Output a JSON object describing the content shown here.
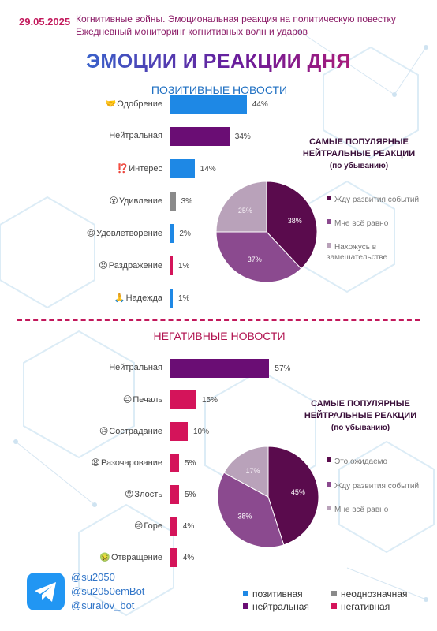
{
  "header": {
    "date": "29.05.2025",
    "subtitle_line1": "Когнитивные войны. Эмоциональная реакция на политическую повестку",
    "subtitle_line2": "Ежедневный мониторинг когнитивных волн и ударов",
    "title": "ЭМОЦИИ И РЕАКЦИИ ДНЯ"
  },
  "colors": {
    "positive": "#1e88e5",
    "neutral": "#6a0d74",
    "ambiguous": "#8a8a8a",
    "negative": "#d4145a"
  },
  "chart_data": [
    {
      "type": "bar",
      "orientation": "horizontal",
      "title": "ПОЗИТИВНЫЕ НОВОСТИ",
      "categories": [
        {
          "emoji": "🤝",
          "label": "Одобрение",
          "value": 44,
          "text": "44%",
          "kind": "positive"
        },
        {
          "emoji": "",
          "label": "Нейтральная",
          "value": 34,
          "text": "34%",
          "kind": "neutral"
        },
        {
          "emoji": "⁉️",
          "label": "Интерес",
          "value": 14,
          "text": "14%",
          "kind": "positive"
        },
        {
          "emoji": "😮",
          "label": "Удивление",
          "value": 3,
          "text": "3%",
          "kind": "ambiguous"
        },
        {
          "emoji": "😌",
          "label": "Удовлетворение",
          "value": 2,
          "text": "2%",
          "kind": "positive"
        },
        {
          "emoji": "😠",
          "label": "Раздражение",
          "value": 1,
          "text": "1%",
          "kind": "negative"
        },
        {
          "emoji": "🙏",
          "label": "Надежда",
          "value": 1,
          "text": "1%",
          "kind": "positive"
        }
      ]
    },
    {
      "type": "pie",
      "title": "САМЫЕ ПОПУЛЯРНЫЕ НЕЙТРАЛЬНЫЕ РЕАКЦИИ",
      "subtitle": "(по убыванию)",
      "slices": [
        {
          "label": "Жду развития событий",
          "value": 38,
          "text": "38%",
          "color": "#5a0b4d"
        },
        {
          "label": "Мне всё равно",
          "value": 37,
          "text": "37%",
          "color": "#8b4a8f"
        },
        {
          "label": "Нахожусь в замешательстве",
          "value": 25,
          "text": "25%",
          "color": "#b9a2ba"
        }
      ]
    },
    {
      "type": "bar",
      "orientation": "horizontal",
      "title": "НЕГАТИВНЫЕ НОВОСТИ",
      "categories": [
        {
          "emoji": "",
          "label": "Нейтральная",
          "value": 57,
          "text": "57%",
          "kind": "neutral"
        },
        {
          "emoji": "😔",
          "label": "Печаль",
          "value": 15,
          "text": "15%",
          "kind": "negative"
        },
        {
          "emoji": "😥",
          "label": "Сострадание",
          "value": 10,
          "text": "10%",
          "kind": "negative"
        },
        {
          "emoji": "😩",
          "label": "Разочарование",
          "value": 5,
          "text": "5%",
          "kind": "negative"
        },
        {
          "emoji": "😡",
          "label": "Злость",
          "value": 5,
          "text": "5%",
          "kind": "negative"
        },
        {
          "emoji": "😢",
          "label": "Горе",
          "value": 4,
          "text": "4%",
          "kind": "negative"
        },
        {
          "emoji": "🤢",
          "label": "Отвращение",
          "value": 4,
          "text": "4%",
          "kind": "negative"
        }
      ]
    },
    {
      "type": "pie",
      "title": "САМЫЕ ПОПУЛЯРНЫЕ НЕЙТРАЛЬНЫЕ РЕАКЦИИ",
      "subtitle": "(по убыванию)",
      "slices": [
        {
          "label": "Это ожидаемо",
          "value": 45,
          "text": "45%",
          "color": "#5a0b4d"
        },
        {
          "label": "Жду развития событий",
          "value": 38,
          "text": "38%",
          "color": "#8b4a8f"
        },
        {
          "label": "Мне всё равно",
          "value": 17,
          "text": "17%",
          "color": "#b9a2ba"
        }
      ]
    }
  ],
  "footer": {
    "icon": "telegram-icon",
    "handles": [
      "@su2050",
      "@su2050emBot",
      "@suralov_bot"
    ],
    "legend": [
      {
        "label": "позитивная",
        "kind": "positive"
      },
      {
        "label": "неоднозначная",
        "kind": "ambiguous"
      },
      {
        "label": "нейтральная",
        "kind": "neutral"
      },
      {
        "label": "негативная",
        "kind": "negative"
      }
    ]
  }
}
